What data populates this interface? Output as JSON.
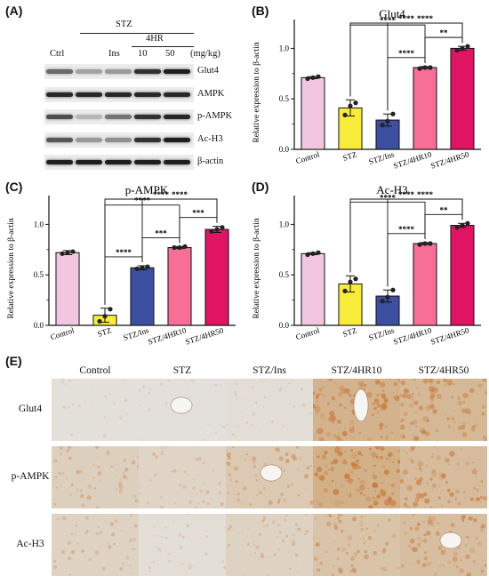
{
  "panel_labels": {
    "a": "(A)",
    "b": "(B)",
    "c": "(C)",
    "d": "(D)",
    "e": "(E)"
  },
  "western_blot": {
    "group_header": "STZ",
    "subgroup_header": "4HR",
    "unit": "(mg/kg)",
    "lanes": [
      "Ctrl",
      "",
      "Ins",
      "10",
      "50"
    ],
    "bands": [
      {
        "label": "Glut4",
        "intensity": [
          0.55,
          0.25,
          0.3,
          0.85,
          0.95
        ]
      },
      {
        "label": "AMPK",
        "intensity": [
          0.9,
          0.9,
          0.9,
          0.9,
          0.9
        ]
      },
      {
        "label": "p-AMPK",
        "intensity": [
          0.7,
          0.15,
          0.5,
          0.85,
          0.9
        ]
      },
      {
        "label": "Ac-H3",
        "intensity": [
          0.65,
          0.3,
          0.35,
          0.85,
          0.95
        ]
      },
      {
        "label": "β-actin",
        "intensity": [
          0.95,
          0.95,
          0.95,
          0.95,
          0.95
        ]
      }
    ]
  },
  "chart_data": [
    {
      "type": "bar",
      "panel": "(B)",
      "title": "Glut4",
      "ylabel": "Relative expression to β-actin",
      "xlabel": "",
      "categories": [
        "Control",
        "STZ",
        "STZ/Ins",
        "STZ/4HR10",
        "STZ/4HR50"
      ],
      "values": [
        0.71,
        0.41,
        0.29,
        0.81,
        1.0
      ],
      "errors": [
        0.01,
        0.08,
        0.06,
        0.01,
        0.02
      ],
      "points": [
        [
          0.7,
          0.71,
          0.72
        ],
        [
          0.34,
          0.43,
          0.46
        ],
        [
          0.24,
          0.28,
          0.35
        ],
        [
          0.8,
          0.81,
          0.81
        ],
        [
          0.98,
          1.0,
          1.02
        ]
      ],
      "colors": [
        "#f2c6e0",
        "#f7ec3a",
        "#3c4fa0",
        "#f76e96",
        "#e01463"
      ],
      "ylim": [
        0,
        1.25
      ],
      "yticks": [
        "0.0",
        "0.5",
        "1.0"
      ],
      "brackets": [
        {
          "from": 1,
          "to": 4,
          "label": "****"
        },
        {
          "from": 2,
          "to": 4,
          "label": "****"
        },
        {
          "from": 1,
          "to": 3,
          "label": "****"
        },
        {
          "from": 2,
          "to": 3,
          "label": "****"
        },
        {
          "from": 3,
          "to": 4,
          "label": "**"
        }
      ]
    },
    {
      "type": "bar",
      "panel": "(C)",
      "title": "p-AMPK",
      "ylabel": "Relative expression to β-actin",
      "xlabel": "",
      "categories": [
        "Control",
        "STZ",
        "STZ/Ins",
        "STZ/4HR10",
        "STZ/4HR50"
      ],
      "values": [
        0.72,
        0.1,
        0.57,
        0.77,
        0.95
      ],
      "errors": [
        0.02,
        0.07,
        0.02,
        0.01,
        0.03
      ],
      "points": [
        [
          0.71,
          0.72,
          0.73
        ],
        [
          0.04,
          0.09,
          0.16
        ],
        [
          0.56,
          0.57,
          0.58
        ],
        [
          0.77,
          0.77,
          0.78
        ],
        [
          0.93,
          0.95,
          0.97
        ]
      ],
      "colors": [
        "#f2c6e0",
        "#f7ec3a",
        "#3c4fa0",
        "#f76e96",
        "#e01463"
      ],
      "ylim": [
        0,
        1.25
      ],
      "yticks": [
        "0.0",
        "0.5",
        "1.0"
      ],
      "brackets": [
        {
          "from": 1,
          "to": 4,
          "label": "****"
        },
        {
          "from": 2,
          "to": 4,
          "label": "****"
        },
        {
          "from": 1,
          "to": 3,
          "label": "****"
        },
        {
          "from": 1,
          "to": 2,
          "label": "****"
        },
        {
          "from": 2,
          "to": 3,
          "label": "***"
        },
        {
          "from": 3,
          "to": 4,
          "label": "***"
        }
      ]
    },
    {
      "type": "bar",
      "panel": "(D)",
      "title": "Ac-H3",
      "ylabel": "Relative expression to β-actin",
      "xlabel": "",
      "categories": [
        "Control",
        "STZ",
        "STZ/Ins",
        "STZ/4HR10",
        "STZ/4HR50"
      ],
      "values": [
        0.71,
        0.41,
        0.29,
        0.81,
        0.99
      ],
      "errors": [
        0.01,
        0.08,
        0.06,
        0.01,
        0.02
      ],
      "points": [
        [
          0.7,
          0.71,
          0.72
        ],
        [
          0.34,
          0.43,
          0.46
        ],
        [
          0.24,
          0.28,
          0.35
        ],
        [
          0.8,
          0.81,
          0.81
        ],
        [
          0.97,
          0.99,
          1.01
        ]
      ],
      "colors": [
        "#f2c6e0",
        "#f7ec3a",
        "#3c4fa0",
        "#f76e96",
        "#e01463"
      ],
      "ylim": [
        0,
        1.25
      ],
      "yticks": [
        "0.0",
        "0.5",
        "1.0"
      ],
      "brackets": [
        {
          "from": 1,
          "to": 4,
          "label": "****"
        },
        {
          "from": 2,
          "to": 4,
          "label": "****"
        },
        {
          "from": 1,
          "to": 3,
          "label": "****"
        },
        {
          "from": 2,
          "to": 3,
          "label": "****"
        },
        {
          "from": 3,
          "to": 4,
          "label": "**"
        }
      ]
    }
  ],
  "ihc": {
    "columns": [
      "Control",
      "STZ",
      "STZ/Ins",
      "STZ/4HR10",
      "STZ/4HR50"
    ],
    "rows": [
      "Glut4",
      "p-AMPK",
      "Ac-H3"
    ],
    "stain_level": [
      [
        0.05,
        0.03,
        0.08,
        0.85,
        0.75
      ],
      [
        0.35,
        0.25,
        0.45,
        0.9,
        0.7
      ],
      [
        0.3,
        0.1,
        0.3,
        0.55,
        0.65
      ]
    ],
    "colors": {
      "background": "#e4e2de",
      "stain": "#c96f2a"
    }
  }
}
